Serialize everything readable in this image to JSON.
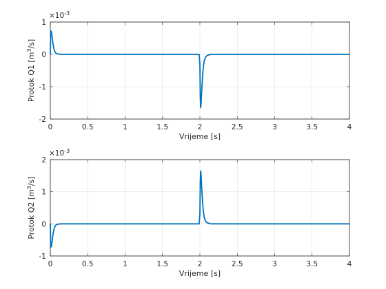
{
  "chart_data": [
    {
      "type": "line",
      "title": "",
      "xlabel": "Vrijeme [s]",
      "ylabel": "Protok Q1 [m",
      "ylabel_sup": "3",
      "ylabel_tail": "/s]",
      "y_multiplier": "×10",
      "y_multiplier_exp": "-3",
      "xlim": [
        0,
        4
      ],
      "ylim": [
        -2,
        1
      ],
      "xticks": [
        0,
        0.5,
        1,
        1.5,
        2,
        2.5,
        3,
        3.5,
        4
      ],
      "yticks": [
        -2,
        -1,
        0,
        1
      ],
      "grid": true,
      "series": [
        {
          "color": "#0072bd",
          "x": [
            0,
            0.005,
            0.01,
            0.015,
            0.02,
            0.03,
            0.04,
            0.05,
            0.06,
            0.07,
            0.08,
            0.1,
            0.15,
            1.0,
            1.99,
            2.0,
            2.005,
            2.01,
            2.015,
            2.02,
            2.03,
            2.04,
            2.05,
            2.06,
            2.08,
            2.1,
            2.15,
            3.0,
            4.0
          ],
          "y": [
            0,
            0.65,
            0.72,
            0.7,
            0.6,
            0.42,
            0.27,
            0.16,
            0.09,
            0.05,
            0.03,
            0.01,
            0,
            0,
            0,
            -0.3,
            -1.3,
            -1.65,
            -1.55,
            -1.3,
            -0.9,
            -0.55,
            -0.32,
            -0.18,
            -0.07,
            -0.03,
            0,
            0,
            0
          ]
        }
      ]
    },
    {
      "type": "line",
      "title": "",
      "xlabel": "Vrijeme [s]",
      "ylabel": "Protok Q2 [m",
      "ylabel_sup": "3",
      "ylabel_tail": "/s]",
      "y_multiplier": "×10",
      "y_multiplier_exp": "-3",
      "xlim": [
        0,
        4
      ],
      "ylim": [
        -1,
        2
      ],
      "xticks": [
        0,
        0.5,
        1,
        1.5,
        2,
        2.5,
        3,
        3.5,
        4
      ],
      "yticks": [
        -1,
        0,
        1,
        2
      ],
      "grid": true,
      "series": [
        {
          "color": "#0072bd",
          "x": [
            0,
            0.005,
            0.01,
            0.015,
            0.02,
            0.03,
            0.04,
            0.05,
            0.06,
            0.07,
            0.08,
            0.1,
            0.15,
            1.0,
            1.99,
            2.0,
            2.005,
            2.01,
            2.015,
            2.02,
            2.03,
            2.04,
            2.05,
            2.06,
            2.08,
            2.1,
            2.15,
            3.0,
            4.0
          ],
          "y": [
            0,
            -0.65,
            -0.72,
            -0.7,
            -0.6,
            -0.42,
            -0.27,
            -0.16,
            -0.09,
            -0.05,
            -0.03,
            -0.01,
            0,
            0,
            0,
            0.3,
            1.3,
            1.65,
            1.55,
            1.3,
            0.9,
            0.55,
            0.32,
            0.18,
            0.07,
            0.03,
            0,
            0,
            0
          ]
        }
      ]
    }
  ]
}
